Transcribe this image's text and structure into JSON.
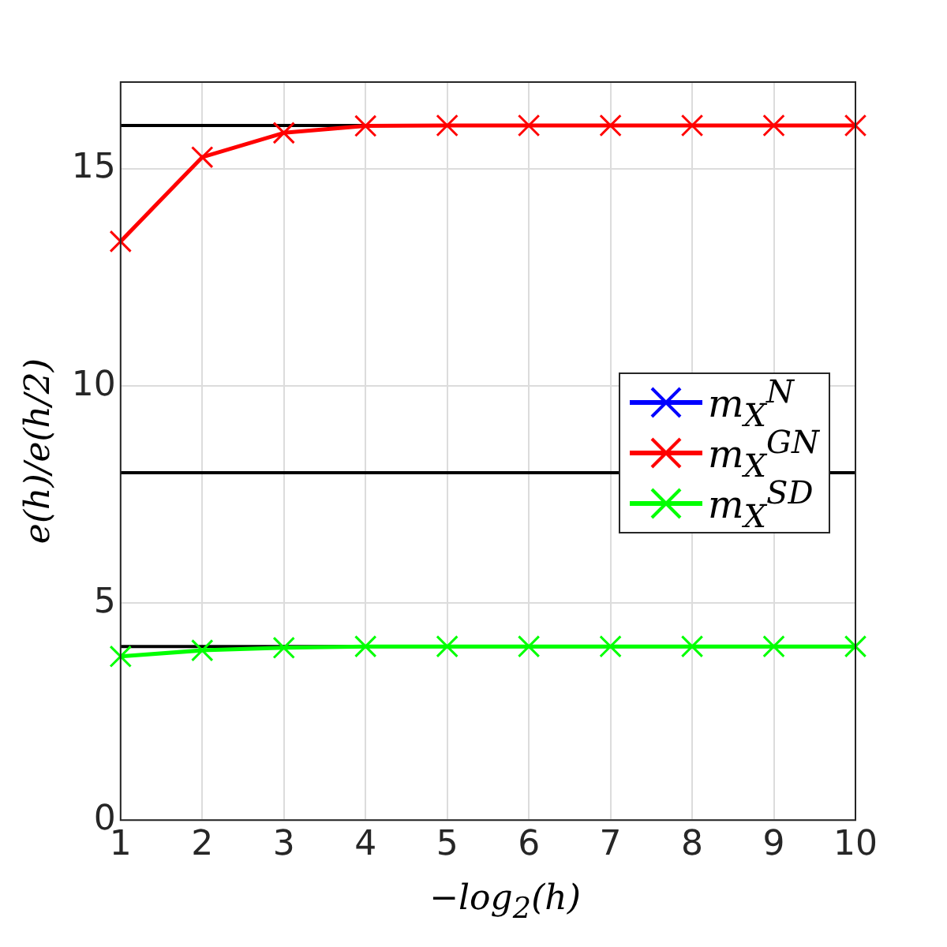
{
  "chart_data": {
    "type": "line",
    "xlabel": "−log$_{2}$(h)",
    "ylabel": "e(h)/e(h/2)",
    "x": [
      1,
      2,
      3,
      4,
      5,
      6,
      7,
      8,
      9,
      10
    ],
    "series": [
      {
        "name": "m$_{X}$$^{N}$",
        "color": "#0000ff",
        "values": [
          null,
          null,
          null,
          null,
          null,
          null,
          null,
          null,
          null,
          null
        ]
      },
      {
        "name": "m$_{X}$$^{GN}$",
        "color": "#ff0000",
        "values": [
          13.33,
          15.27,
          15.83,
          15.99,
          16,
          16,
          16,
          16,
          16,
          16
        ]
      },
      {
        "name": "m$_{X}$$^{SD}$",
        "color": "#00ff00",
        "values": [
          3.77,
          3.91,
          3.97,
          4,
          4,
          4,
          4,
          4,
          4,
          4
        ]
      }
    ],
    "xlim": [
      1,
      10
    ],
    "xticks": [
      1,
      2,
      3,
      4,
      5,
      6,
      7,
      8,
      9,
      10
    ],
    "ylim": [
      0,
      17
    ],
    "yticks": [
      0,
      5,
      10,
      15
    ],
    "ref_lines": [
      {
        "axis": "y",
        "value": 16,
        "color": "#000000"
      },
      {
        "axis": "y",
        "value": 8,
        "color": "#000000"
      },
      {
        "axis": "y",
        "value": 4,
        "color": "#000000"
      }
    ],
    "grid": true,
    "legend": "right",
    "marker": "cross",
    "line_style": "solid"
  }
}
